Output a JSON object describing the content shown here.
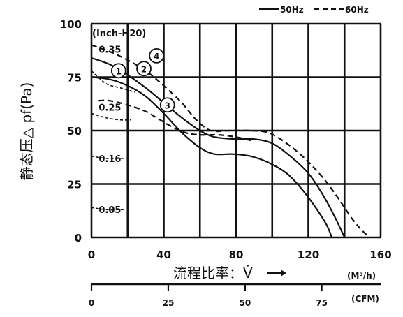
{
  "chart_data": {
    "type": "line",
    "legend": {
      "position": "top-right",
      "entries": [
        {
          "label": "50Hz",
          "style": "solid"
        },
        {
          "label": "60Hz",
          "style": "dashed"
        }
      ]
    },
    "xlabel": "流程比率：V̇",
    "xunit": "(M³/h)",
    "xlim": [
      0,
      160
    ],
    "xticks": [
      "0",
      "40",
      "80",
      "120",
      "160"
    ],
    "x2unit": "(CFM)",
    "x2ticks": [
      {
        "label": "0",
        "m3h": 0
      },
      {
        "label": "25",
        "m3h": 42.5
      },
      {
        "label": "50",
        "m3h": 85
      },
      {
        "label": "75",
        "m3h": 127.4
      }
    ],
    "ylabel": "静态压△ pf(Pa)",
    "ylim": [
      0,
      100
    ],
    "yticks": [
      "0",
      "25",
      "50",
      "75",
      "100"
    ],
    "grid": true,
    "resistance_title": "(Inch-H20)",
    "resistance_curves": [
      {
        "label": "0.35",
        "points": [
          [
            0,
            78
          ],
          [
            8,
            72
          ],
          [
            16,
            70
          ],
          [
            24,
            68
          ]
        ],
        "label_at": [
          4,
          88
        ]
      },
      {
        "label": "0.25",
        "points": [
          [
            0,
            58
          ],
          [
            8,
            56
          ],
          [
            16,
            55
          ],
          [
            22,
            55
          ]
        ],
        "label_at": [
          4,
          61
        ]
      },
      {
        "label": "0.16",
        "points": [
          [
            0,
            38
          ],
          [
            8,
            37
          ],
          [
            16,
            37
          ],
          [
            18,
            37
          ]
        ],
        "label_at": [
          4,
          37
        ]
      },
      {
        "label": "0.05",
        "points": [
          [
            0,
            14
          ],
          [
            8,
            13
          ],
          [
            16,
            13
          ],
          [
            18,
            13
          ]
        ],
        "label_at": [
          4,
          13
        ]
      }
    ],
    "series": [
      {
        "id": "1",
        "style": "solid",
        "points": [
          [
            0,
            75
          ],
          [
            10,
            74
          ],
          [
            20,
            71
          ],
          [
            30,
            66
          ],
          [
            40,
            58
          ],
          [
            50,
            49
          ],
          [
            60,
            42
          ],
          [
            68,
            39
          ],
          [
            78,
            39
          ],
          [
            88,
            38
          ],
          [
            98,
            35
          ],
          [
            108,
            30
          ],
          [
            116,
            23
          ],
          [
            124,
            14
          ],
          [
            130,
            6
          ],
          [
            133,
            0
          ]
        ]
      },
      {
        "id": "2",
        "style": "solid",
        "points": [
          [
            0,
            84
          ],
          [
            10,
            81
          ],
          [
            20,
            76
          ],
          [
            30,
            70
          ],
          [
            40,
            63
          ],
          [
            50,
            56
          ],
          [
            60,
            50
          ],
          [
            68,
            47
          ],
          [
            80,
            46
          ],
          [
            90,
            46
          ],
          [
            100,
            44
          ],
          [
            110,
            38
          ],
          [
            120,
            30
          ],
          [
            128,
            20
          ],
          [
            135,
            9
          ],
          [
            140,
            0
          ]
        ]
      },
      {
        "id": "3",
        "style": "dashed",
        "points": [
          [
            4,
            64
          ],
          [
            10,
            64
          ],
          [
            20,
            62
          ],
          [
            30,
            59
          ],
          [
            36,
            56
          ],
          [
            44,
            52
          ],
          [
            52,
            49
          ],
          [
            60,
            48
          ],
          [
            70,
            48
          ],
          [
            80,
            47
          ],
          [
            90,
            45
          ]
        ]
      },
      {
        "id": "4",
        "style": "dashed",
        "points": [
          [
            0,
            90
          ],
          [
            10,
            87
          ],
          [
            20,
            83
          ],
          [
            30,
            78
          ],
          [
            40,
            71
          ],
          [
            50,
            63
          ],
          [
            58,
            55
          ],
          [
            66,
            50
          ],
          [
            76,
            50
          ],
          [
            88,
            50
          ],
          [
            98,
            49
          ],
          [
            108,
            44
          ],
          [
            118,
            37
          ],
          [
            128,
            28
          ],
          [
            136,
            19
          ],
          [
            144,
            9
          ],
          [
            150,
            3
          ],
          [
            154,
            0
          ]
        ]
      }
    ],
    "markers": [
      {
        "label": "1",
        "at": [
          15,
          78
        ]
      },
      {
        "label": "2",
        "at": [
          29,
          79
        ]
      },
      {
        "label": "4",
        "at": [
          36,
          85
        ]
      },
      {
        "label": "3",
        "at": [
          42,
          62
        ]
      }
    ]
  }
}
